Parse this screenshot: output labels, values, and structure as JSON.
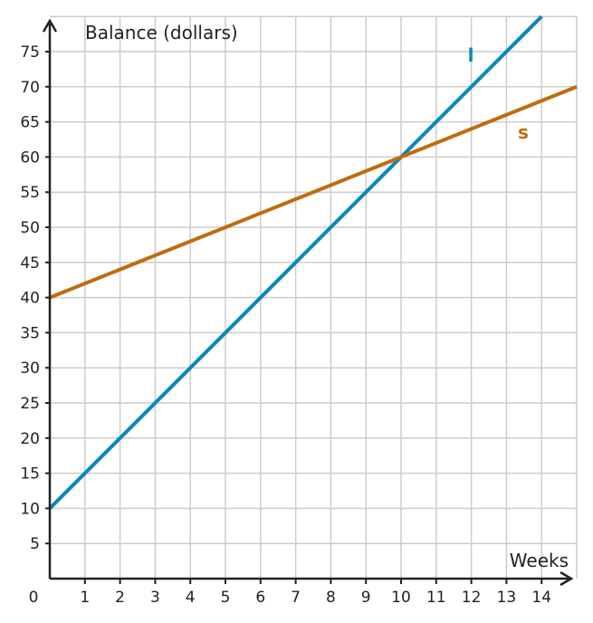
{
  "chart_data": {
    "type": "line",
    "xlabel": "Weeks",
    "ylabel": "Balance (dollars)",
    "origin_label": "0",
    "xlim": [
      0,
      15
    ],
    "ylim": [
      0,
      80
    ],
    "x_ticks": [
      1,
      2,
      3,
      4,
      5,
      6,
      7,
      8,
      9,
      10,
      11,
      12,
      13,
      14
    ],
    "y_ticks": [
      5,
      10,
      15,
      20,
      25,
      30,
      35,
      40,
      45,
      50,
      55,
      60,
      65,
      70,
      75
    ],
    "grid": true,
    "series": [
      {
        "name": "l",
        "color": "#0a86bd",
        "x": [
          0,
          14
        ],
        "y": [
          10,
          80
        ]
      },
      {
        "name": "s",
        "color": "#bf6d0a",
        "x": [
          0,
          15
        ],
        "y": [
          40,
          70
        ]
      }
    ]
  },
  "colors": {
    "grid": "#cccccc",
    "axis": "#222222"
  }
}
